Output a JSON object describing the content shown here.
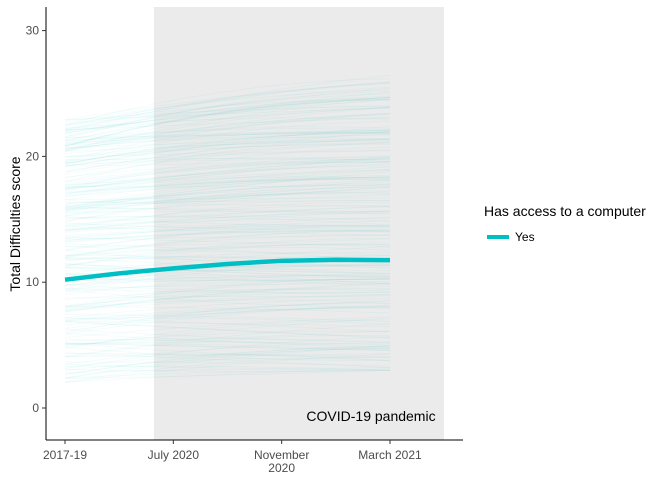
{
  "chart_data": {
    "type": "line",
    "title": "",
    "xlabel": "",
    "ylabel": "Total Difficulties score",
    "x_categories": [
      "2017-19",
      "July 2020",
      "November\n2020",
      "March 2021"
    ],
    "y_ticks": [
      0,
      10,
      20,
      30
    ],
    "ylim": [
      -2.5,
      32
    ],
    "grid": false,
    "shaded_region": {
      "from_category_index": 0.82,
      "to_category_index": 3.5,
      "label": "COVID-19 pandemic",
      "color": "#ebebeb"
    },
    "individual_trajectories": {
      "description_color": "#00BFC4",
      "count_shown": "many",
      "y_range_at_start": [
        2,
        23
      ],
      "y_range_at_end": [
        3,
        27
      ]
    },
    "series": [
      {
        "name": "Yes",
        "color": "#00BFC4",
        "x": [
          0,
          0.5,
          1,
          1.5,
          2,
          2.5,
          3
        ],
        "values": [
          10.2,
          10.7,
          11.1,
          11.45,
          11.7,
          11.78,
          11.75
        ]
      }
    ],
    "legend": {
      "title": "Has access to a computer",
      "placement": "right",
      "entries": [
        "Yes"
      ]
    }
  }
}
